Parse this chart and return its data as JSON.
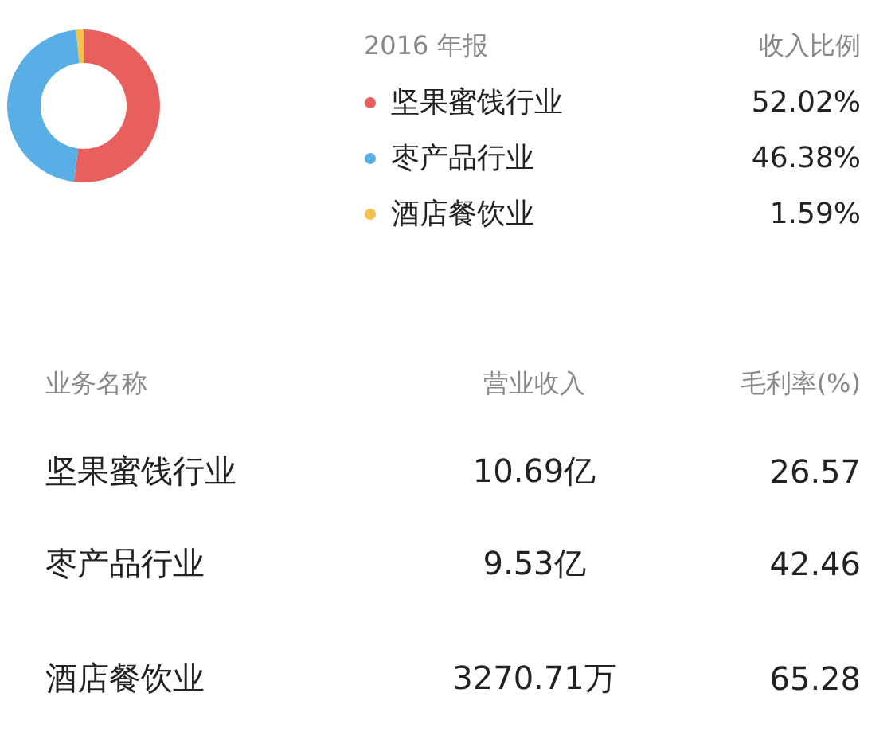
{
  "chart_data": {
    "type": "donut",
    "title": "2016 年报",
    "legend_title": "收入比例",
    "categories": [
      "坚果蜜饯行业",
      "枣产品行业",
      "酒店餐饮业"
    ],
    "values": [
      52.02,
      46.38,
      1.59
    ],
    "value_labels": [
      "52.02%",
      "46.38%",
      "1.59%"
    ],
    "colors": [
      "#e8605e",
      "#5aaee6",
      "#f2c14e"
    ],
    "legend": "right",
    "annotations": [
      "业务名称",
      "营业收入",
      "毛利率(%)",
      "坚果蜜饯行业",
      "10.69亿",
      "26.57",
      "枣产品行业",
      "9.53亿",
      "42.46",
      "酒店餐饮业",
      "3270.71万",
      "65.28"
    ]
  }
}
